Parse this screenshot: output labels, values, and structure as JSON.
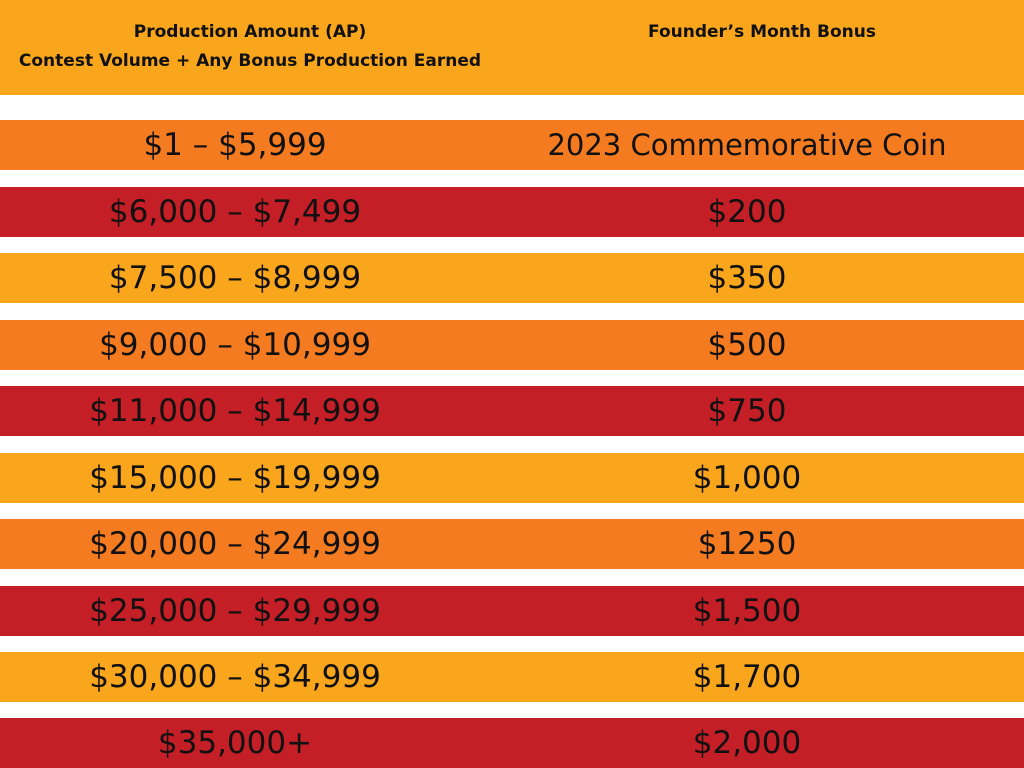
{
  "header": {
    "col1_line1": "Production Amount (AP)",
    "col1_line2": "Contest Volume + Any Bonus Production Earned",
    "col2": "Founder’s Month Bonus"
  },
  "colors": {
    "header": "#F9A61C",
    "orange": "#F47B20",
    "red": "#C41E26",
    "yellow": "#F9A61C"
  },
  "rows": [
    {
      "amount": "$1 – $5,999",
      "bonus": "2023 Commemorative Coin",
      "color": "orange"
    },
    {
      "amount": "$6,000 – $7,499",
      "bonus": "$200",
      "color": "red"
    },
    {
      "amount": "$7,500 – $8,999",
      "bonus": "$350",
      "color": "yellow"
    },
    {
      "amount": "$9,000 – $10,999",
      "bonus": "$500",
      "color": "orange"
    },
    {
      "amount": "$11,000 – $14,999",
      "bonus": "$750",
      "color": "red"
    },
    {
      "amount": "$15,000 – $19,999",
      "bonus": "$1,000",
      "color": "yellow"
    },
    {
      "amount": "$20,000 – $24,999",
      "bonus": "$1250",
      "color": "orange"
    },
    {
      "amount": "$25,000 – $29,999",
      "bonus": "$1,500",
      "color": "red"
    },
    {
      "amount": "$30,000 – $34,999",
      "bonus": "$1,700",
      "color": "yellow"
    },
    {
      "amount": "$35,000+",
      "bonus": "$2,000",
      "color": "red"
    }
  ]
}
